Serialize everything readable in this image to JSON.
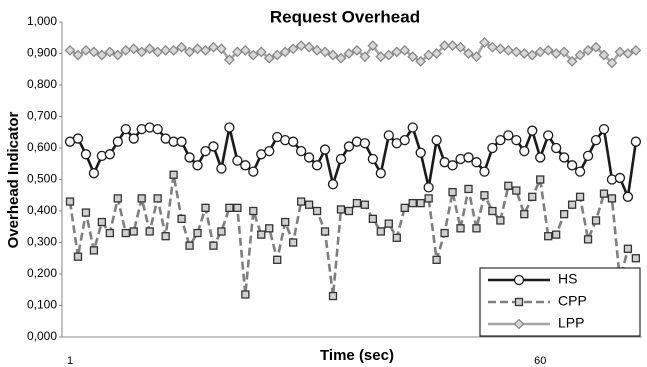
{
  "chart_data": {
    "type": "line",
    "title": "Request Overhead",
    "xlabel": "Time (sec)",
    "ylabel": "Overhead Indicator",
    "categories": [
      "1",
      null,
      null,
      null,
      null,
      null,
      null,
      null,
      null,
      null,
      null,
      null,
      null,
      null,
      null,
      null,
      null,
      null,
      null,
      null,
      null,
      null,
      null,
      null,
      null,
      null,
      null,
      null,
      null,
      null,
      null,
      null,
      null,
      null,
      null,
      null,
      null,
      null,
      null,
      null,
      null,
      null,
      null,
      null,
      null,
      null,
      null,
      null,
      null,
      null,
      null,
      null,
      null,
      null,
      null,
      null,
      null,
      null,
      null,
      "60",
      null,
      null,
      null,
      null,
      null,
      null,
      null,
      null,
      null,
      null,
      null,
      null
    ],
    "ylim": [
      0,
      1
    ],
    "yticks": [
      {
        "value": 0,
        "label": "0,000"
      },
      {
        "value": 0.1,
        "label": "0,100"
      },
      {
        "value": 0.2,
        "label": "0,200"
      },
      {
        "value": 0.3,
        "label": "0,300"
      },
      {
        "value": 0.4,
        "label": "0,400"
      },
      {
        "value": 0.5,
        "label": "0,500"
      },
      {
        "value": 0.6,
        "label": "0,600"
      },
      {
        "value": 0.7,
        "label": "0,700"
      },
      {
        "value": 0.8,
        "label": "0,800"
      },
      {
        "value": 0.9,
        "label": "0,900"
      },
      {
        "value": 1,
        "label": "1,000"
      }
    ],
    "grid": false,
    "legend": "lower right",
    "series": [
      {
        "name": "HS",
        "color": "#1a1a1a",
        "marker": "circle",
        "dash": "solid",
        "values": [
          0.62,
          0.63,
          0.58,
          0.52,
          0.575,
          0.58,
          0.62,
          0.66,
          0.63,
          0.66,
          0.665,
          0.66,
          0.63,
          0.62,
          0.62,
          0.57,
          0.545,
          0.59,
          0.605,
          0.535,
          0.665,
          0.56,
          0.545,
          0.525,
          0.58,
          0.59,
          0.635,
          0.625,
          0.62,
          0.59,
          0.57,
          0.545,
          0.595,
          0.485,
          0.565,
          0.605,
          0.62,
          0.615,
          0.565,
          0.52,
          0.64,
          0.615,
          0.625,
          0.665,
          0.585,
          0.475,
          0.625,
          0.555,
          0.545,
          0.565,
          0.57,
          0.555,
          0.525,
          0.6,
          0.625,
          0.64,
          0.625,
          0.59,
          0.655,
          0.57,
          0.64,
          0.6,
          0.57,
          0.545,
          0.525,
          0.575,
          0.625,
          0.66,
          0.5,
          0.505,
          0.445,
          0.62
        ]
      },
      {
        "name": "CPP",
        "color": "#7f7f7f",
        "marker": "square",
        "dash": "dashed",
        "values": [
          0.43,
          0.255,
          0.395,
          0.275,
          0.365,
          0.33,
          0.44,
          0.33,
          0.335,
          0.44,
          0.335,
          0.44,
          0.32,
          0.515,
          0.375,
          0.29,
          0.33,
          0.41,
          0.29,
          0.335,
          0.41,
          0.41,
          0.135,
          0.4,
          0.325,
          0.345,
          0.245,
          0.365,
          0.3,
          0.43,
          0.42,
          0.4,
          0.335,
          0.13,
          0.405,
          0.4,
          0.425,
          0.42,
          0.375,
          0.335,
          0.36,
          0.315,
          0.41,
          0.425,
          0.425,
          0.44,
          0.245,
          0.33,
          0.46,
          0.345,
          0.47,
          0.345,
          0.45,
          0.4,
          0.37,
          0.48,
          0.465,
          0.39,
          0.445,
          0.5,
          0.32,
          0.325,
          0.39,
          0.42,
          0.445,
          0.31,
          0.37,
          0.455,
          0.44,
          0.18,
          0.28,
          0.25
        ]
      },
      {
        "name": "LPP",
        "color": "#a6a6a6",
        "marker": "diamond",
        "dash": "solid",
        "values": [
          0.91,
          0.895,
          0.91,
          0.905,
          0.895,
          0.905,
          0.895,
          0.91,
          0.915,
          0.905,
          0.915,
          0.905,
          0.91,
          0.91,
          0.92,
          0.905,
          0.915,
          0.91,
          0.92,
          0.915,
          0.88,
          0.905,
          0.91,
          0.895,
          0.905,
          0.885,
          0.895,
          0.905,
          0.915,
          0.925,
          0.92,
          0.91,
          0.905,
          0.895,
          0.885,
          0.9,
          0.91,
          0.89,
          0.925,
          0.89,
          0.895,
          0.905,
          0.91,
          0.89,
          0.875,
          0.895,
          0.9,
          0.925,
          0.925,
          0.92,
          0.9,
          0.89,
          0.935,
          0.92,
          0.915,
          0.91,
          0.905,
          0.9,
          0.895,
          0.905,
          0.91,
          0.9,
          0.905,
          0.875,
          0.895,
          0.91,
          0.92,
          0.895,
          0.87,
          0.905,
          0.9,
          0.91
        ]
      }
    ]
  }
}
